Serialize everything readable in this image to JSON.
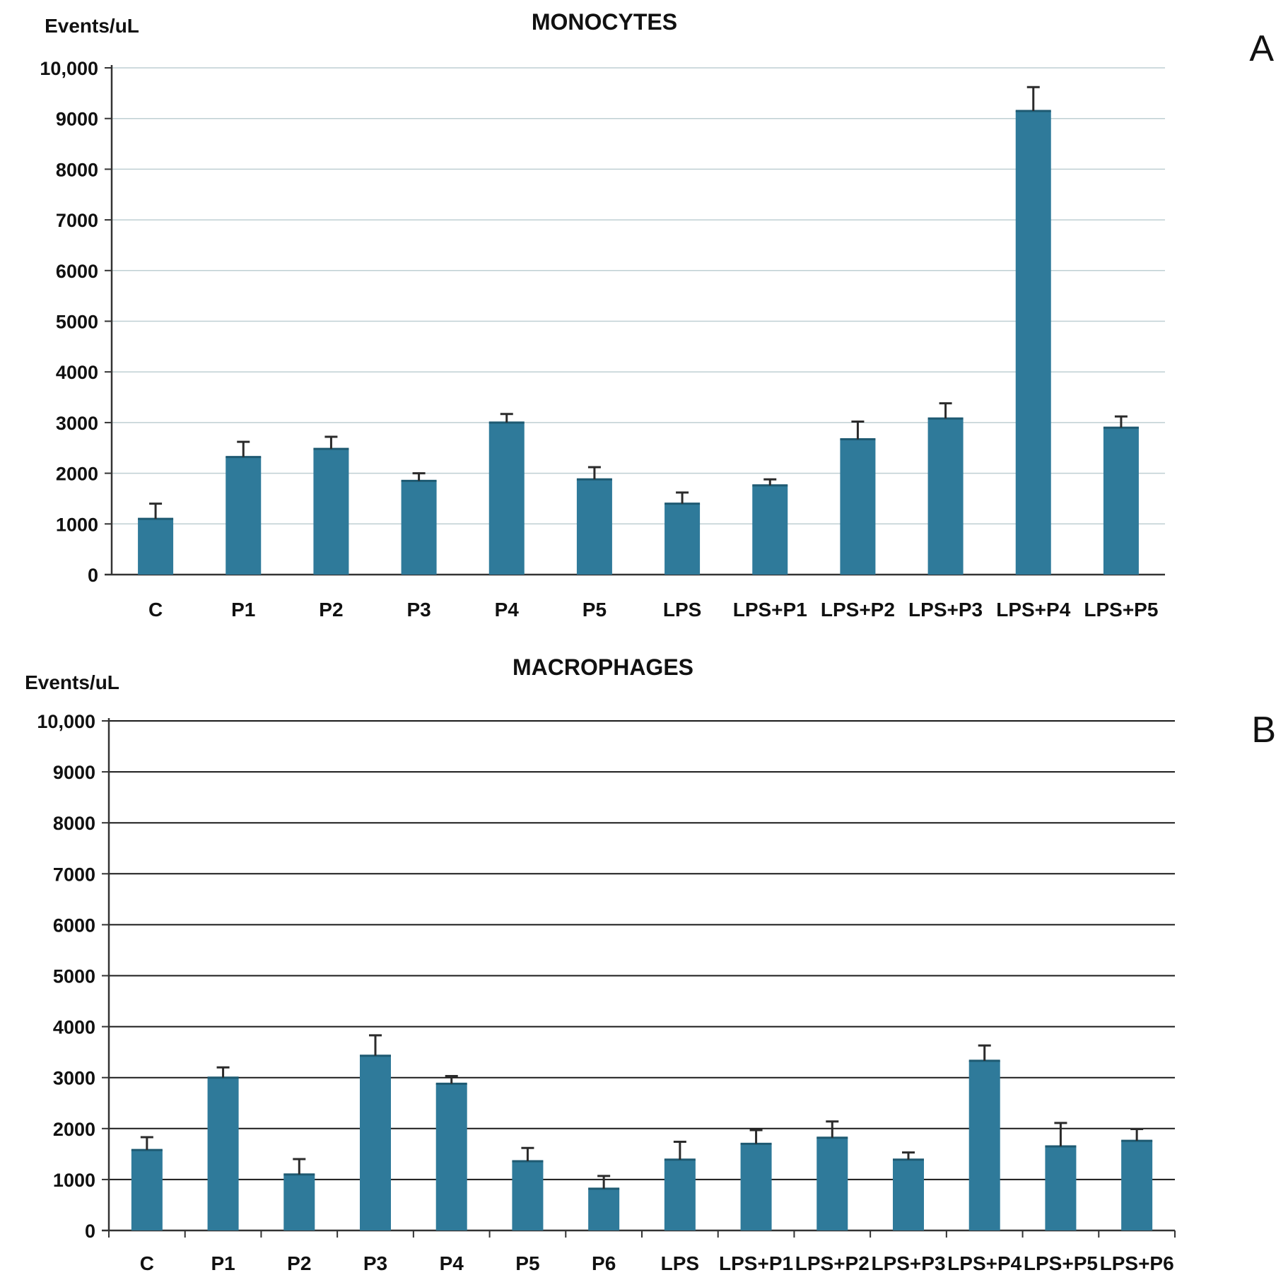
{
  "chart_data": [
    {
      "type": "bar",
      "panel": "A",
      "title": "MONOCYTES",
      "ylabel": "Events/uL",
      "xlabel": "",
      "ylim": [
        0,
        10000
      ],
      "yticks": [
        0,
        1000,
        2000,
        3000,
        4000,
        5000,
        6000,
        7000,
        8000,
        9000,
        10000
      ],
      "ytick_labels": [
        "0",
        "1000",
        "2000",
        "3000",
        "4000",
        "5000",
        "6000",
        "7000",
        "8000",
        "9000",
        "10,000"
      ],
      "grid": true,
      "bar_color": "#2f7a9a",
      "categories": [
        "C",
        "P1",
        "P2",
        "P3",
        "P4",
        "P5",
        "LPS",
        "LPS+P1",
        "LPS+P2",
        "LPS+P3",
        "LPS+P4",
        "LPS+P5"
      ],
      "values": [
        1100,
        2320,
        2480,
        1850,
        3000,
        1880,
        1400,
        1760,
        2670,
        3080,
        9150,
        2900
      ],
      "errors": [
        300,
        300,
        240,
        150,
        170,
        240,
        220,
        120,
        350,
        300,
        470,
        220
      ]
    },
    {
      "type": "bar",
      "panel": "B",
      "title": "MACROPHAGES",
      "ylabel": "Events/uL",
      "xlabel": "",
      "ylim": [
        0,
        10000
      ],
      "yticks": [
        0,
        1000,
        2000,
        3000,
        4000,
        5000,
        6000,
        7000,
        8000,
        9000,
        10000
      ],
      "ytick_labels": [
        "0",
        "1000",
        "2000",
        "3000",
        "4000",
        "5000",
        "6000",
        "7000",
        "8000",
        "9000",
        "10,000"
      ],
      "grid": true,
      "bar_color": "#2f7a9a",
      "categories": [
        "C",
        "P1",
        "P2",
        "P3",
        "P4",
        "P5",
        "P6",
        "LPS",
        "LPS+P1",
        "LPS+P2",
        "LPS+P3",
        "LPS+P4",
        "LPS+P5",
        "LPS+P6"
      ],
      "values": [
        1580,
        3000,
        1100,
        3430,
        2880,
        1360,
        820,
        1390,
        1700,
        1820,
        1390,
        3330,
        1650,
        1760
      ],
      "errors": [
        250,
        200,
        300,
        400,
        150,
        260,
        250,
        350,
        270,
        320,
        140,
        300,
        460,
        230
      ]
    }
  ]
}
